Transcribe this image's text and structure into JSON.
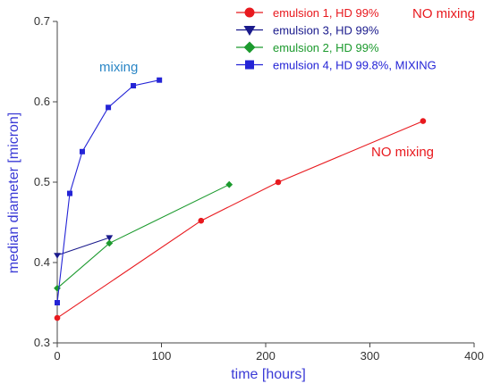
{
  "chart_data": {
    "type": "line",
    "xlabel": "time [hours]",
    "ylabel": "median diameter [micron]",
    "xlim": [
      0,
      400
    ],
    "ylim": [
      0.3,
      0.7
    ],
    "xticks": [
      0,
      100,
      200,
      300,
      400
    ],
    "yticks": [
      0.3,
      0.4,
      0.5,
      0.6,
      0.7
    ],
    "grid": false,
    "legend_position": "top-right",
    "series": [
      {
        "name": "emulsion 1, HD 99%",
        "color": "#e8191e",
        "marker": "circle",
        "x": [
          0,
          138,
          212,
          351
        ],
        "y": [
          0.331,
          0.452,
          0.5,
          0.576
        ]
      },
      {
        "name": "emulsion 3, HD 99%",
        "color": "#1a1a8c",
        "marker": "triangle-down",
        "x": [
          0,
          50
        ],
        "y": [
          0.409,
          0.431
        ]
      },
      {
        "name": "emulsion 2, HD 99%",
        "color": "#1c9a2e",
        "marker": "diamond",
        "x": [
          0,
          50,
          165
        ],
        "y": [
          0.368,
          0.424,
          0.497
        ]
      },
      {
        "name": "emulsion 4, HD 99.8%, MIXING",
        "color": "#2424d6",
        "marker": "square",
        "x": [
          0,
          12,
          24,
          49,
          73,
          98
        ],
        "y": [
          0.35,
          0.486,
          0.538,
          0.593,
          0.62,
          0.627
        ]
      }
    ],
    "annotations": [
      {
        "id": "mixing",
        "text": "mixing",
        "color": "#2a86c6"
      },
      {
        "id": "no-mixing-plot",
        "text": "NO mixing",
        "color": "#e8191e"
      },
      {
        "id": "no-mixing-legend",
        "text": "NO mixing",
        "color": "#e8191e"
      }
    ]
  }
}
